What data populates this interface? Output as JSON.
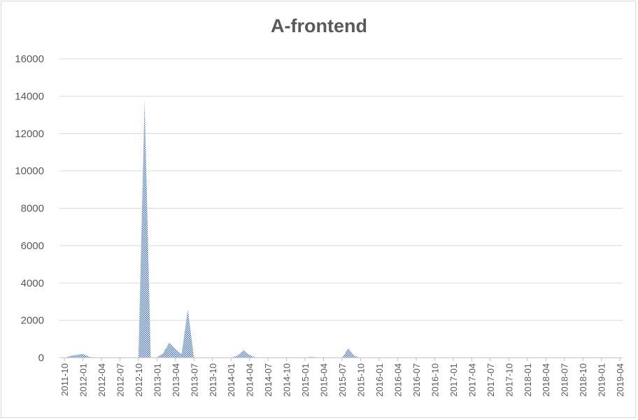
{
  "chart_data": {
    "type": "area",
    "title": "A-frontend",
    "xlabel": "",
    "ylabel": "",
    "ylim": [
      0,
      16000
    ],
    "yticks": [
      0,
      2000,
      4000,
      6000,
      8000,
      10000,
      12000,
      14000,
      16000
    ],
    "x_tick_labels": [
      "2011-10",
      "2012-01",
      "2012-04",
      "2012-07",
      "2012-10",
      "2013-01",
      "2013-04",
      "2013-07",
      "2013-10",
      "2014-01",
      "2014-04",
      "2014-07",
      "2014-10",
      "2015-01",
      "2015-04",
      "2015-07",
      "2015-10",
      "2016-01",
      "2016-04",
      "2016-07",
      "2016-10",
      "2017-01",
      "2017-04",
      "2017-07",
      "2017-10",
      "2018-01",
      "2018-04",
      "2018-07",
      "2018-10",
      "2019-01",
      "2019-04"
    ],
    "grid": true,
    "color": "#4472c4",
    "fill_pattern": "checkered",
    "series": [
      {
        "x": [
          "2011-10",
          "2011-11",
          "2011-12",
          "2012-01",
          "2012-02",
          "2012-03",
          "2012-04",
          "2012-05",
          "2012-06",
          "2012-07",
          "2012-08",
          "2012-09",
          "2012-10",
          "2012-11",
          "2012-12",
          "2013-01",
          "2013-02",
          "2013-03",
          "2013-04",
          "2013-05",
          "2013-06",
          "2013-07",
          "2013-08",
          "2013-09",
          "2013-10",
          "2013-11",
          "2013-12",
          "2014-01",
          "2014-02",
          "2014-03",
          "2014-04",
          "2014-05",
          "2014-06",
          "2014-07",
          "2014-08",
          "2014-09",
          "2014-10",
          "2014-11",
          "2014-12",
          "2015-01",
          "2015-02",
          "2015-03",
          "2015-04",
          "2015-05",
          "2015-06",
          "2015-07",
          "2015-08",
          "2015-09",
          "2015-10",
          "2015-11",
          "2015-12",
          "2016-01",
          "2016-02",
          "2016-03",
          "2016-04",
          "2016-05",
          "2016-06",
          "2016-07",
          "2016-08",
          "2016-09",
          "2016-10",
          "2016-11",
          "2016-12",
          "2017-01",
          "2017-02",
          "2017-03",
          "2017-04",
          "2017-05",
          "2017-06",
          "2017-07",
          "2017-08",
          "2017-09",
          "2017-10",
          "2017-11",
          "2017-12",
          "2018-01",
          "2018-02",
          "2018-03",
          "2018-04",
          "2018-05",
          "2018-06",
          "2018-07",
          "2018-08",
          "2018-09",
          "2018-10",
          "2018-11",
          "2018-12",
          "2019-01",
          "2019-02",
          "2019-03",
          "2019-04",
          "2019-05",
          "2019-06"
        ],
        "values": [
          0,
          100,
          150,
          200,
          50,
          0,
          0,
          0,
          0,
          0,
          0,
          0,
          0,
          13800,
          0,
          0,
          250,
          800,
          450,
          200,
          2600,
          0,
          0,
          0,
          0,
          0,
          0,
          0,
          100,
          400,
          150,
          0,
          0,
          0,
          0,
          0,
          0,
          0,
          0,
          0,
          50,
          0,
          0,
          0,
          0,
          0,
          500,
          100,
          0,
          0,
          0,
          0,
          0,
          0,
          0,
          0,
          0,
          0,
          0,
          0,
          0,
          0,
          0,
          0,
          0,
          0,
          0,
          0,
          0,
          0,
          0,
          0,
          0,
          0,
          0,
          0,
          0,
          0,
          0,
          0,
          0,
          0,
          0,
          0,
          0,
          0,
          0,
          0,
          0,
          0,
          0,
          0,
          0
        ]
      }
    ]
  }
}
